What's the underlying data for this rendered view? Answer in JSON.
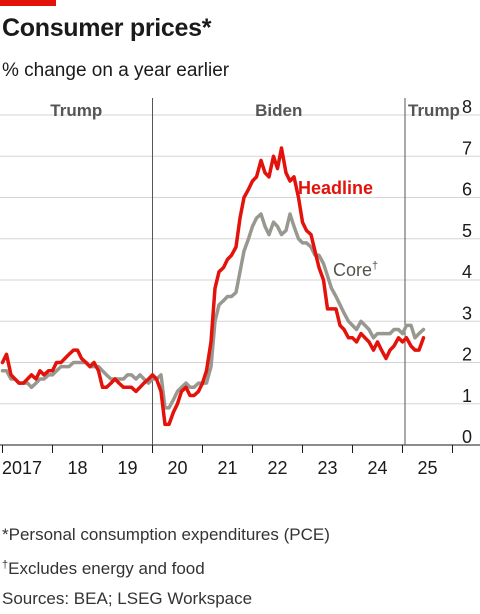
{
  "header": {
    "title": "Consumer prices*",
    "subtitle": "% change on a year earlier"
  },
  "footnotes": {
    "pce": "*Personal consumption expenditures (PCE)",
    "core_dagger": "†",
    "core_note": "Excludes energy and food",
    "sources": "Sources: BEA; LSEG Workspace"
  },
  "chart_data": {
    "type": "line",
    "x_tick_labels": [
      "2017",
      "18",
      "19",
      "20",
      "21",
      "22",
      "23",
      "24",
      "25"
    ],
    "x_range": [
      2016.95,
      2025.55
    ],
    "ylim": [
      0,
      8
    ],
    "y_ticks": [
      0,
      1,
      2,
      3,
      4,
      5,
      6,
      7,
      8
    ],
    "y_axis_side": "right",
    "grid": true,
    "eras": [
      {
        "label": "Trump",
        "start": 2016.95,
        "end": 2020.0
      },
      {
        "label": "Biden",
        "start": 2020.0,
        "end": 2025.05
      },
      {
        "label": "Trump",
        "start": 2025.05,
        "end": 2025.55
      }
    ],
    "series": [
      {
        "name": "Headline",
        "color": "#e3120b",
        "x": [
          2017.0,
          2017.08,
          2017.17,
          2017.25,
          2017.33,
          2017.42,
          2017.5,
          2017.58,
          2017.67,
          2017.75,
          2017.83,
          2017.92,
          2018.0,
          2018.08,
          2018.17,
          2018.25,
          2018.33,
          2018.42,
          2018.5,
          2018.58,
          2018.67,
          2018.75,
          2018.83,
          2018.92,
          2019.0,
          2019.08,
          2019.17,
          2019.25,
          2019.33,
          2019.42,
          2019.5,
          2019.58,
          2019.67,
          2019.75,
          2019.83,
          2019.92,
          2020.0,
          2020.08,
          2020.17,
          2020.25,
          2020.33,
          2020.42,
          2020.5,
          2020.58,
          2020.67,
          2020.75,
          2020.83,
          2020.92,
          2021.0,
          2021.08,
          2021.17,
          2021.25,
          2021.33,
          2021.42,
          2021.5,
          2021.58,
          2021.67,
          2021.75,
          2021.83,
          2021.92,
          2022.0,
          2022.08,
          2022.17,
          2022.25,
          2022.33,
          2022.42,
          2022.5,
          2022.58,
          2022.67,
          2022.75,
          2022.83,
          2022.92,
          2023.0,
          2023.08,
          2023.17,
          2023.25,
          2023.33,
          2023.42,
          2023.5,
          2023.58,
          2023.67,
          2023.75,
          2023.83,
          2023.92,
          2024.0,
          2024.08,
          2024.17,
          2024.25,
          2024.33,
          2024.42,
          2024.5,
          2024.58,
          2024.67,
          2024.75,
          2024.83,
          2024.92,
          2025.0,
          2025.08,
          2025.17,
          2025.25,
          2025.33,
          2025.42
        ],
        "values": [
          2.0,
          2.2,
          1.7,
          1.6,
          1.5,
          1.5,
          1.6,
          1.7,
          1.6,
          1.8,
          1.7,
          1.8,
          1.8,
          2.0,
          2.0,
          2.1,
          2.2,
          2.3,
          2.3,
          2.1,
          2.0,
          1.9,
          2.0,
          1.8,
          1.4,
          1.4,
          1.5,
          1.6,
          1.5,
          1.4,
          1.4,
          1.4,
          1.3,
          1.4,
          1.5,
          1.6,
          1.7,
          1.6,
          1.3,
          0.5,
          0.5,
          0.8,
          1.0,
          1.3,
          1.4,
          1.2,
          1.2,
          1.3,
          1.5,
          1.8,
          2.5,
          3.8,
          4.2,
          4.3,
          4.5,
          4.6,
          4.8,
          5.5,
          6.0,
          6.2,
          6.4,
          6.5,
          6.9,
          6.6,
          6.5,
          7.0,
          6.7,
          7.2,
          6.6,
          6.4,
          6.5,
          6.0,
          5.4,
          5.2,
          5.1,
          4.7,
          4.3,
          4.0,
          3.3,
          3.3,
          3.3,
          2.9,
          2.8,
          2.6,
          2.6,
          2.5,
          2.7,
          2.6,
          2.5,
          2.3,
          2.5,
          2.3,
          2.1,
          2.3,
          2.4,
          2.6,
          2.5,
          2.6,
          2.4,
          2.3,
          2.3,
          2.6
        ]
      },
      {
        "name": "Core",
        "name_marker": "†",
        "color": "#999890",
        "x": [
          2017.0,
          2017.08,
          2017.17,
          2017.25,
          2017.33,
          2017.42,
          2017.5,
          2017.58,
          2017.67,
          2017.75,
          2017.83,
          2017.92,
          2018.0,
          2018.08,
          2018.17,
          2018.25,
          2018.33,
          2018.42,
          2018.5,
          2018.58,
          2018.67,
          2018.75,
          2018.83,
          2018.92,
          2019.0,
          2019.08,
          2019.17,
          2019.25,
          2019.33,
          2019.42,
          2019.5,
          2019.58,
          2019.67,
          2019.75,
          2019.83,
          2019.92,
          2020.0,
          2020.08,
          2020.17,
          2020.25,
          2020.33,
          2020.42,
          2020.5,
          2020.58,
          2020.67,
          2020.75,
          2020.83,
          2020.92,
          2021.0,
          2021.08,
          2021.17,
          2021.25,
          2021.33,
          2021.42,
          2021.5,
          2021.58,
          2021.67,
          2021.75,
          2021.83,
          2021.92,
          2022.0,
          2022.08,
          2022.17,
          2022.25,
          2022.33,
          2022.42,
          2022.5,
          2022.58,
          2022.67,
          2022.75,
          2022.83,
          2022.92,
          2023.0,
          2023.08,
          2023.17,
          2023.25,
          2023.33,
          2023.42,
          2023.5,
          2023.58,
          2023.67,
          2023.75,
          2023.83,
          2023.92,
          2024.0,
          2024.08,
          2024.17,
          2024.25,
          2024.33,
          2024.42,
          2024.5,
          2024.58,
          2024.67,
          2024.75,
          2024.83,
          2024.92,
          2025.0,
          2025.08,
          2025.17,
          2025.25,
          2025.33,
          2025.42
        ],
        "values": [
          1.8,
          1.8,
          1.6,
          1.6,
          1.5,
          1.5,
          1.5,
          1.4,
          1.5,
          1.6,
          1.6,
          1.7,
          1.7,
          1.8,
          1.9,
          1.9,
          1.9,
          2.0,
          2.0,
          2.0,
          2.0,
          1.9,
          1.9,
          1.9,
          1.8,
          1.7,
          1.6,
          1.6,
          1.6,
          1.6,
          1.7,
          1.7,
          1.6,
          1.7,
          1.6,
          1.5,
          1.6,
          1.6,
          1.7,
          0.9,
          0.9,
          1.1,
          1.3,
          1.4,
          1.5,
          1.4,
          1.4,
          1.5,
          1.5,
          1.5,
          1.9,
          3.0,
          3.4,
          3.5,
          3.6,
          3.6,
          3.7,
          4.2,
          4.7,
          5.0,
          5.3,
          5.5,
          5.6,
          5.3,
          5.1,
          5.4,
          5.3,
          5.1,
          5.2,
          5.6,
          5.3,
          5.0,
          4.9,
          4.9,
          4.8,
          4.6,
          4.6,
          4.4,
          4.1,
          3.8,
          3.6,
          3.4,
          3.2,
          3.0,
          2.9,
          2.8,
          3.0,
          2.9,
          2.8,
          2.6,
          2.7,
          2.7,
          2.7,
          2.7,
          2.8,
          2.8,
          2.7,
          2.9,
          2.9,
          2.6,
          2.7,
          2.8
        ]
      }
    ]
  }
}
